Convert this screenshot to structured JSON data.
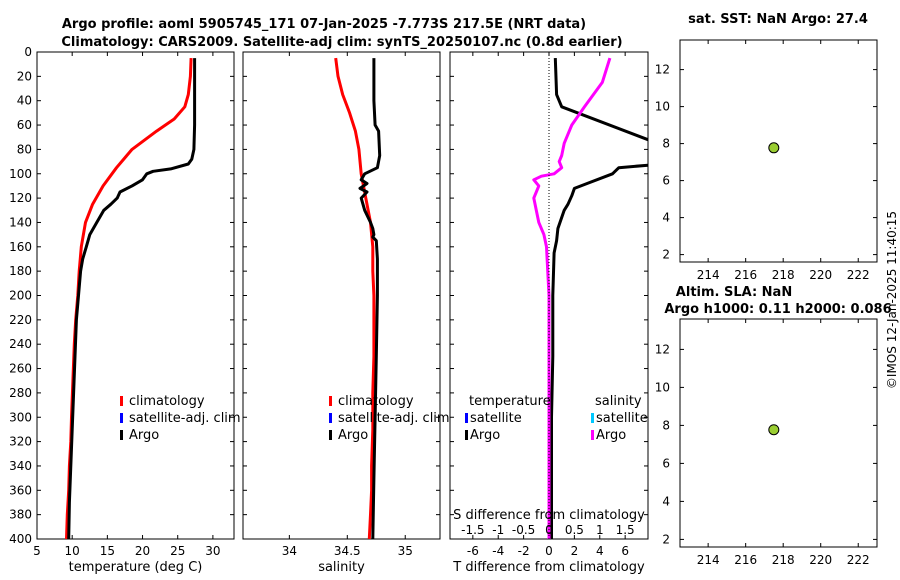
{
  "titles": {
    "main_line1": "Argo profile: aoml 5905745_171 07-Jan-2025 -7.773S 217.5E (NRT data)",
    "main_line2": "Climatology: CARS2009. Satellite-adj clim: synTS_20250107.nc (0.8d earlier)",
    "sst": "sat. SST: NaN Argo: 27.4",
    "sla_line1": "Altim. SLA: NaN",
    "sla_line2": "Argo h1000: 0.11 h2000: 0.086",
    "watermark": "©IMOS 12-Jan-2025 11:40:15"
  },
  "colors": {
    "climatology": "#ff0000",
    "satellite": "#0000ff",
    "argo": "#000000",
    "s_satellite": "#00c8ff",
    "s_argo": "#ff00ff",
    "marker": "#9acd32"
  },
  "chart_data": [
    {
      "type": "line",
      "name": "temperature",
      "xlabel": "temperature (deg C)",
      "ylabel": "",
      "xlim": [
        5,
        33
      ],
      "ylim": [
        400,
        0
      ],
      "xticks": [
        5,
        10,
        15,
        20,
        25,
        30
      ],
      "yticks": [
        0,
        20,
        40,
        60,
        80,
        100,
        120,
        140,
        160,
        180,
        200,
        220,
        240,
        260,
        280,
        300,
        320,
        340,
        360,
        380,
        400
      ],
      "legend": [
        "climatology",
        "satellite-adj. clim",
        "Argo"
      ],
      "series": [
        {
          "name": "climatology",
          "x": [
            26.9,
            26.8,
            26.5,
            26.0,
            24.5,
            22.0,
            18.5,
            16.3,
            14.4,
            12.9,
            11.9,
            11.3,
            11.0,
            10.8,
            10.5,
            10.3,
            10.1,
            9.9,
            9.8,
            9.6,
            9.5,
            9.3,
            9.2
          ],
          "depth": [
            5,
            20,
            35,
            45,
            55,
            65,
            80,
            95,
            110,
            125,
            140,
            160,
            180,
            200,
            220,
            240,
            270,
            300,
            320,
            340,
            360,
            380,
            400
          ]
        },
        {
          "name": "Argo",
          "x": [
            27.4,
            27.4,
            27.4,
            27.3,
            27.0,
            26.5,
            24.0,
            21.5,
            20.6,
            20.0,
            18.5,
            16.8,
            16.4,
            15.5,
            14.5,
            13.5,
            12.5,
            12.0,
            11.5,
            11.2,
            10.9,
            10.6,
            10.4,
            10.2,
            10.0,
            9.8,
            9.6,
            9.5
          ],
          "depth": [
            5,
            30,
            60,
            80,
            88,
            92,
            96,
            98,
            100,
            105,
            110,
            115,
            120,
            125,
            130,
            140,
            150,
            160,
            170,
            180,
            200,
            220,
            250,
            280,
            310,
            340,
            370,
            400
          ]
        }
      ]
    },
    {
      "type": "line",
      "name": "salinity",
      "xlabel": "salinity",
      "xlim": [
        33.6,
        35.3
      ],
      "ylim": [
        400,
        0
      ],
      "xticks": [
        34,
        34.5,
        35
      ],
      "legend": [
        "climatology",
        "satellite-adj. clim",
        "Argo"
      ],
      "series": [
        {
          "name": "climatology",
          "x": [
            34.4,
            34.42,
            34.46,
            34.52,
            34.57,
            34.6,
            34.62,
            34.66,
            34.7,
            34.72,
            34.72,
            34.73,
            34.73,
            34.73,
            34.72,
            34.72,
            34.71,
            34.71,
            34.7,
            34.69
          ],
          "depth": [
            5,
            20,
            35,
            50,
            65,
            80,
            100,
            120,
            140,
            160,
            180,
            200,
            220,
            250,
            280,
            310,
            340,
            360,
            380,
            400
          ]
        },
        {
          "name": "Argo",
          "x": [
            34.73,
            34.73,
            34.74,
            34.77,
            34.78,
            34.76,
            34.65,
            34.62,
            34.67,
            34.61,
            34.67,
            34.62,
            34.65,
            34.7,
            34.72,
            34.73,
            34.72,
            34.75,
            34.76,
            34.76,
            34.75,
            34.74,
            34.73,
            34.72
          ],
          "depth": [
            5,
            40,
            60,
            65,
            85,
            95,
            100,
            105,
            108,
            112,
            115,
            120,
            130,
            140,
            145,
            150,
            152,
            155,
            170,
            200,
            250,
            300,
            350,
            400
          ]
        }
      ]
    },
    {
      "type": "line",
      "name": "difference",
      "xlabel": "T difference from climatology",
      "x2label": "S difference from climatology",
      "xlim": [
        -7.8,
        7.8
      ],
      "ylim": [
        400,
        0
      ],
      "xticks": [
        -6,
        -4,
        -2,
        0,
        2,
        4,
        6
      ],
      "x2ticks": [
        -1.5,
        -1,
        -0.5,
        0,
        0.5,
        1,
        1.5
      ],
      "x2lim": [
        -1.95,
        1.95
      ],
      "legend_headers": [
        "temperature",
        "salinity"
      ],
      "legend": [
        "satellite",
        "Argo",
        "satellite",
        "Argo"
      ],
      "series": [
        {
          "name": "T Argo",
          "x": [
            0.5,
            0.6,
            1.0,
            7.8
          ],
          "depth": [
            5,
            35,
            45,
            72
          ],
          "x_b": [
            7.8,
            5.5,
            5.0,
            3.0,
            2.0,
            1.8,
            1.5,
            1.2,
            0.7,
            0.6,
            0.4,
            0.3,
            0.3,
            0.2,
            0.2,
            0.2
          ],
          "depth_b": [
            93,
            95,
            100,
            108,
            112,
            118,
            125,
            130,
            145,
            155,
            165,
            200,
            250,
            300,
            350,
            400
          ]
        },
        {
          "name": "S Argo",
          "x": [
            1.2,
            1.05,
            0.7,
            0.45,
            0.3,
            0.25,
            0.2,
            0.25,
            0.1,
            -0.15,
            -0.3,
            -0.2,
            -0.3,
            -0.25,
            -0.2,
            -0.1,
            -0.05,
            0.0,
            0.0,
            0.0,
            0.0,
            0.0
          ],
          "depth": [
            5,
            25,
            45,
            60,
            75,
            85,
            90,
            95,
            100,
            102,
            105,
            110,
            120,
            130,
            140,
            150,
            160,
            200,
            250,
            300,
            350,
            400
          ]
        }
      ]
    },
    {
      "type": "scatter",
      "name": "sst_panel",
      "title": "sat. SST: NaN Argo: 27.4",
      "xlim": [
        212.5,
        223
      ],
      "ylim": [
        1.6,
        13.6
      ],
      "xticks": [
        214,
        216,
        218,
        220,
        222
      ],
      "yticks": [
        2,
        4,
        6,
        8,
        10,
        12
      ],
      "points": [
        {
          "x": 217.5,
          "y": 7.773
        }
      ]
    },
    {
      "type": "scatter",
      "name": "sla_panel",
      "title": "Altim. SLA: NaN",
      "xlim": [
        212.5,
        223
      ],
      "ylim": [
        1.6,
        13.6
      ],
      "xticks": [
        214,
        216,
        218,
        220,
        222
      ],
      "yticks": [
        2,
        4,
        6,
        8,
        10,
        12
      ],
      "points": [
        {
          "x": 217.5,
          "y": 7.773
        }
      ]
    }
  ]
}
